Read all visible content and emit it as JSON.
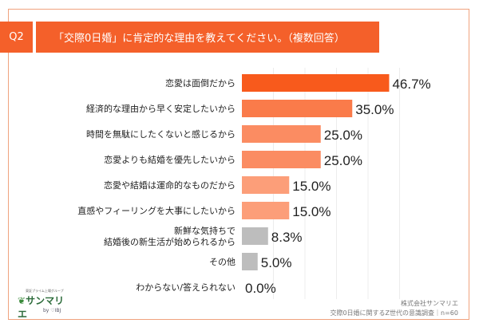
{
  "header": {
    "question_label": "Q2",
    "title": "「交際0日婚」に肯定的な理由を教えてください。（複数回答）"
  },
  "chart_data": {
    "type": "bar",
    "orientation": "horizontal",
    "categories": [
      "恋愛は面倒だから",
      "経済的な理由から早く安定したいから",
      "時間を無駄にしたくないと感じるから",
      "恋愛よりも結婚を優先したいから",
      "恋愛や結婚は運命的なものだから",
      "直感やフィーリングを大事にしたいから",
      "新鮮な気持ちで\n結婚後の新生活が始められるから",
      "その他",
      "わからない/答えられない"
    ],
    "values": [
      46.7,
      35.0,
      25.0,
      25.0,
      15.0,
      15.0,
      8.3,
      5.0,
      0.0
    ],
    "data_labels": [
      "46.7%",
      "35.0%",
      "25.0%",
      "25.0%",
      "15.0%",
      "15.0%",
      "8.3%",
      "5.0%",
      "0.0%"
    ],
    "colors": [
      "#f85a1c",
      "#fa7b4a",
      "#fb8c62",
      "#fb8c62",
      "#fc9e79",
      "#fc9e79",
      "#bdbdbd",
      "#bdbdbd",
      "#bdbdbd"
    ],
    "grid": true,
    "unit": "%"
  },
  "footer": {
    "company": "株式会社サンマリエ",
    "survey": "交際0日婚に関するZ世代の意識調査｜n=60"
  },
  "logo": {
    "tagline": "東証プライム上場グループ",
    "name": "サンマリエ",
    "by": "by ♡IBJ"
  }
}
